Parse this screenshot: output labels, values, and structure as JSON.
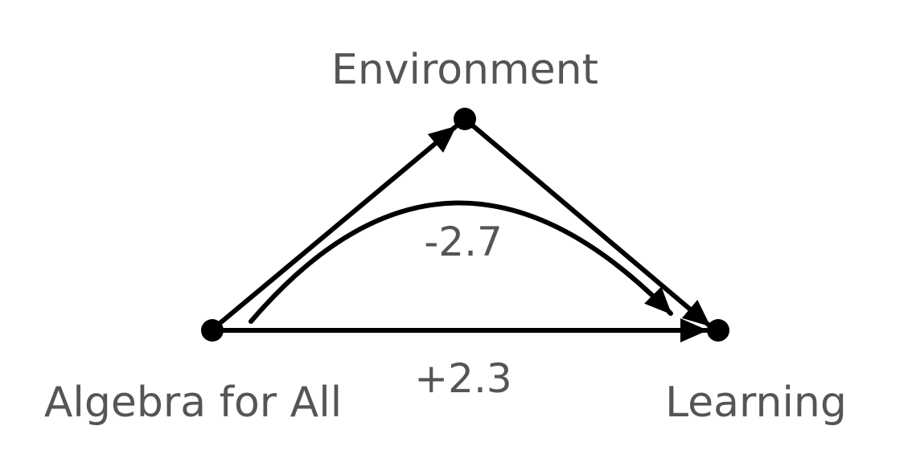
{
  "diagram": {
    "nodes": {
      "environment": {
        "label": "Environment"
      },
      "algebra": {
        "label": "Algebra for All"
      },
      "learning": {
        "label": "Learning"
      }
    },
    "edges": {
      "direct_effect": {
        "from": "Algebra for All",
        "to": "Learning",
        "label": "+2.3"
      },
      "indirect_effect": {
        "from": "Algebra for All",
        "to": "Learning",
        "label": "-2.7"
      }
    }
  }
}
